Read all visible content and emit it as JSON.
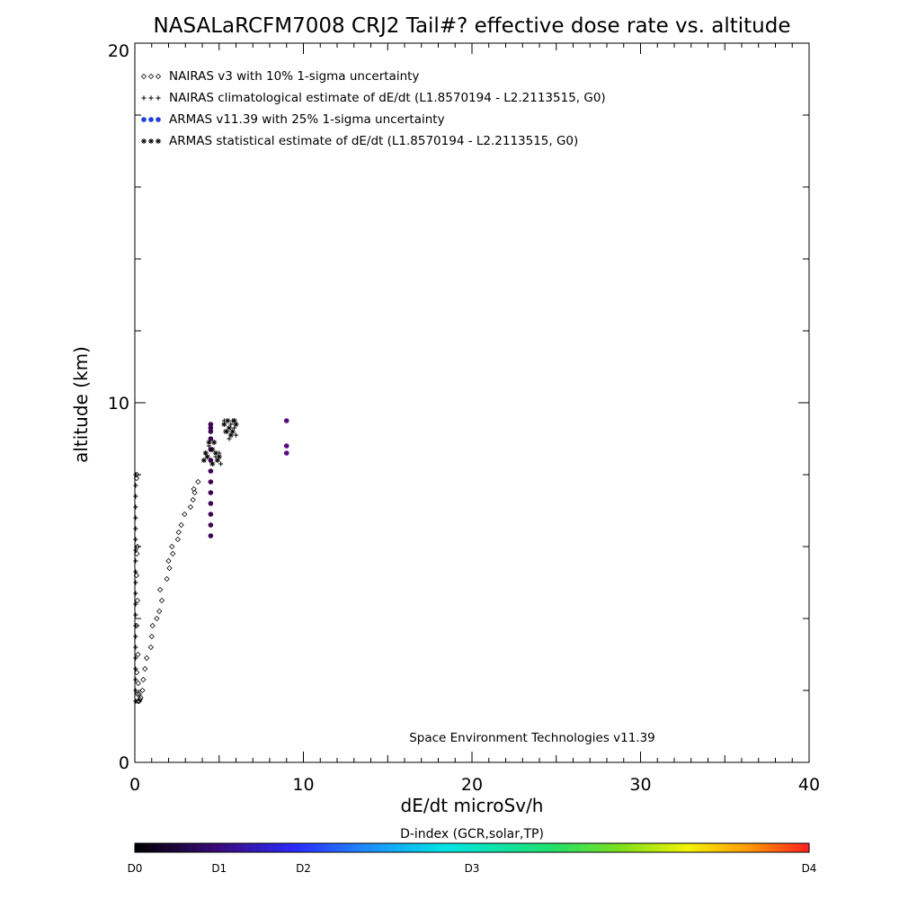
{
  "chart_data": {
    "type": "scatter",
    "title": "NASALaRCFM7008  CRJ2 Tail#? effective dose rate vs. altitude",
    "xlabel": "dE/dt microSv/h",
    "ylabel": "altitude (km)",
    "xlim": [
      0,
      40
    ],
    "ylim": [
      0,
      20
    ],
    "x_ticks": [
      "0",
      "10",
      "20",
      "30",
      "40"
    ],
    "y_ticks": [
      "0",
      "10",
      "20"
    ],
    "grid": false,
    "legend_position": "top-left",
    "credit": "Space Environment Technologies v11.39",
    "series": [
      {
        "name": "NAIRAS v3 with 10% 1-sigma uncertainty",
        "marker": "diamond",
        "color": "#000000",
        "points": [
          [
            0.25,
            1.7
          ],
          [
            0.35,
            1.8
          ],
          [
            0.45,
            2.0
          ],
          [
            0.5,
            2.3
          ],
          [
            0.6,
            2.6
          ],
          [
            0.7,
            2.9
          ],
          [
            0.95,
            3.2
          ],
          [
            1.0,
            3.5
          ],
          [
            1.05,
            3.8
          ],
          [
            1.3,
            4.0
          ],
          [
            1.45,
            4.2
          ],
          [
            1.6,
            4.5
          ],
          [
            1.5,
            4.8
          ],
          [
            1.9,
            5.1
          ],
          [
            2.05,
            5.4
          ],
          [
            2.0,
            5.6
          ],
          [
            2.25,
            5.8
          ],
          [
            2.2,
            6.0
          ],
          [
            2.55,
            6.2
          ],
          [
            2.6,
            6.4
          ],
          [
            2.75,
            6.6
          ],
          [
            2.95,
            6.9
          ],
          [
            3.3,
            7.1
          ],
          [
            3.45,
            7.3
          ],
          [
            3.55,
            7.5
          ],
          [
            3.75,
            7.8
          ],
          [
            3.5,
            7.6
          ],
          [
            0.1,
            7.9
          ],
          [
            0.12,
            8.0
          ],
          [
            0.15,
            6.0
          ],
          [
            0.12,
            5.8
          ],
          [
            0.1,
            5.2
          ],
          [
            0.15,
            4.5
          ],
          [
            0.1,
            3.8
          ],
          [
            0.18,
            3.0
          ],
          [
            0.12,
            2.5
          ],
          [
            0.2,
            2.2
          ],
          [
            0.15,
            1.9
          ],
          [
            0.18,
            1.7
          ],
          [
            0.25,
            1.9
          ],
          [
            0.3,
            1.75
          ]
        ]
      },
      {
        "name": "NAIRAS climatological estimate of dE/dt (L1.8570194 - L2.2113515, G0)",
        "marker": "plus",
        "color": "#000000",
        "points": [
          [
            0.05,
            1.7
          ],
          [
            0.05,
            2.0
          ],
          [
            0.05,
            2.3
          ],
          [
            0.05,
            2.6
          ],
          [
            0.05,
            2.9
          ],
          [
            0.05,
            3.2
          ],
          [
            0.05,
            3.5
          ],
          [
            0.05,
            3.8
          ],
          [
            0.05,
            4.1
          ],
          [
            0.05,
            4.4
          ],
          [
            0.05,
            4.7
          ],
          [
            0.05,
            5.0
          ],
          [
            0.05,
            5.3
          ],
          [
            0.05,
            5.6
          ],
          [
            0.05,
            5.9
          ],
          [
            0.05,
            6.2
          ],
          [
            0.05,
            6.5
          ],
          [
            0.05,
            6.8
          ],
          [
            0.05,
            7.1
          ],
          [
            0.05,
            7.4
          ],
          [
            0.05,
            7.7
          ],
          [
            0.05,
            8.0
          ],
          [
            4.2,
            8.6
          ],
          [
            4.5,
            8.4
          ],
          [
            4.8,
            8.5
          ],
          [
            4.4,
            8.8
          ],
          [
            4.7,
            8.9
          ],
          [
            5.0,
            8.6
          ],
          [
            5.1,
            8.3
          ],
          [
            5.5,
            9.2
          ],
          [
            5.7,
            9.4
          ],
          [
            5.9,
            9.3
          ],
          [
            6.0,
            9.1
          ],
          [
            5.3,
            9.5
          ],
          [
            5.6,
            9.0
          ],
          [
            5.8,
            9.5
          ]
        ]
      },
      {
        "name": "ARMAS v11.39 with 25% 1-sigma uncertainty",
        "marker": "dot",
        "color": "#1f3fd8",
        "points": [
          [
            4.5,
            6.3
          ],
          [
            4.5,
            6.6
          ],
          [
            4.5,
            6.9
          ],
          [
            4.5,
            7.2
          ],
          [
            4.5,
            7.5
          ],
          [
            4.5,
            7.8
          ],
          [
            4.5,
            8.1
          ],
          [
            4.5,
            8.4
          ],
          [
            4.5,
            8.7
          ],
          [
            4.5,
            9.0
          ],
          [
            4.5,
            9.2
          ],
          [
            4.5,
            9.3
          ],
          [
            4.5,
            9.4
          ],
          [
            9.0,
            9.5
          ],
          [
            9.0,
            8.8
          ],
          [
            9.0,
            8.6
          ]
        ]
      },
      {
        "name": "ARMAS statistical estimate of dE/dt (L1.8570194 - L2.2113515, G0)",
        "marker": "asterisk",
        "color": "#000000",
        "points": [
          [
            4.1,
            8.4
          ],
          [
            4.3,
            8.5
          ],
          [
            4.6,
            8.3
          ],
          [
            4.9,
            8.4
          ],
          [
            4.2,
            8.6
          ],
          [
            4.6,
            8.7
          ],
          [
            4.8,
            8.6
          ],
          [
            4.4,
            8.9
          ],
          [
            4.7,
            8.9
          ],
          [
            5.0,
            8.5
          ],
          [
            5.4,
            9.2
          ],
          [
            5.6,
            9.3
          ],
          [
            5.8,
            9.2
          ],
          [
            6.0,
            9.4
          ],
          [
            5.5,
            9.5
          ],
          [
            5.7,
            9.1
          ],
          [
            5.9,
            9.5
          ],
          [
            5.3,
            9.4
          ]
        ]
      }
    ],
    "colorbar": {
      "title": "D-index (GCR,solar,TP)",
      "labels": [
        "D0",
        "D1",
        "D2",
        "D3",
        "D4"
      ],
      "label_positions": [
        0,
        0.125,
        0.25,
        0.5,
        1.0
      ]
    }
  }
}
